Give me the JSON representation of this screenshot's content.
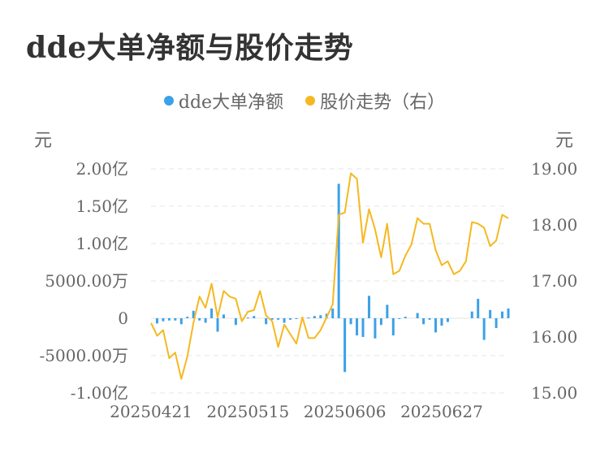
{
  "title": "dde大单净额与股价走势",
  "colors": {
    "dde": "#3ba1e8",
    "price": "#f5b821",
    "grid": "#e6e6e6",
    "text": "#666666"
  },
  "chart_data": {
    "type": "bar+line",
    "title": "dde大单净额与股价走势",
    "legend_position": "top",
    "left_unit": "元",
    "right_unit": "元",
    "y_left_range": [
      -10000,
      20000
    ],
    "y_left_ticks": [
      {
        "v": 20000,
        "label": "2.00亿"
      },
      {
        "v": 15000,
        "label": "1.50亿"
      },
      {
        "v": 10000,
        "label": "1.00亿"
      },
      {
        "v": 5000,
        "label": "5000.00万"
      },
      {
        "v": 0,
        "label": "0"
      },
      {
        "v": -5000,
        "label": "-5000.00万"
      },
      {
        "v": -10000,
        "label": "-1.00亿"
      }
    ],
    "y_right_range": [
      15,
      19
    ],
    "y_right_ticks": [
      {
        "v": 19,
        "label": "19.00"
      },
      {
        "v": 18,
        "label": "18.00"
      },
      {
        "v": 17,
        "label": "17.00"
      },
      {
        "v": 16,
        "label": "16.00"
      },
      {
        "v": 15,
        "label": "15.00"
      }
    ],
    "x_tick_labels": [
      {
        "i": 0,
        "label": "20250421"
      },
      {
        "i": 16,
        "label": "20250515"
      },
      {
        "i": 32,
        "label": "20250606"
      },
      {
        "i": 48,
        "label": "20250627"
      }
    ],
    "series": [
      {
        "name": "dde大单净额",
        "type": "bar",
        "unit": "万元",
        "values": [
          0,
          -700,
          -400,
          -300,
          -300,
          -800,
          200,
          1000,
          -300,
          -600,
          1300,
          -1800,
          500,
          0,
          -900,
          0,
          100,
          300,
          0,
          -800,
          -200,
          -200,
          -600,
          -200,
          -100,
          0,
          100,
          300,
          400,
          600,
          1300,
          18000,
          -7200,
          -800,
          -2300,
          -2500,
          3000,
          -2700,
          -900,
          1800,
          -2300,
          -100,
          200,
          0,
          700,
          -800,
          -200,
          -1900,
          -1000,
          -500,
          0,
          0,
          0,
          900,
          2600,
          -2900,
          1100,
          -1300,
          900,
          1300
        ],
        "color": "#3ba1e8"
      },
      {
        "name": "股价走势（右）",
        "type": "line",
        "unit": "元",
        "values": [
          16.25,
          16.02,
          16.12,
          15.62,
          15.72,
          15.25,
          15.65,
          16.25,
          16.72,
          16.52,
          16.95,
          16.35,
          16.82,
          16.72,
          16.68,
          16.28,
          16.45,
          16.48,
          16.82,
          16.38,
          16.28,
          15.82,
          16.22,
          16.05,
          15.88,
          16.35,
          15.98,
          15.98,
          16.12,
          16.35,
          16.58,
          18.18,
          18.22,
          18.92,
          18.82,
          17.68,
          18.28,
          17.92,
          17.42,
          18.02,
          17.12,
          17.18,
          17.45,
          17.65,
          18.12,
          18.02,
          18.02,
          17.55,
          17.28,
          17.35,
          17.12,
          17.18,
          17.35,
          18.05,
          18.02,
          17.95,
          17.62,
          17.72,
          18.18,
          18.12
        ],
        "color": "#f5b821"
      }
    ]
  }
}
